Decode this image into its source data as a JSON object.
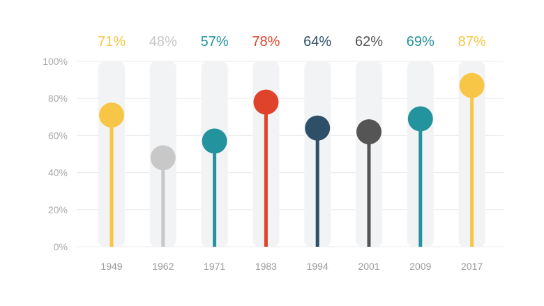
{
  "chart_data": {
    "type": "lollipop",
    "categories": [
      "1949",
      "1962",
      "1971",
      "1983",
      "1994",
      "2001",
      "2009",
      "2017"
    ],
    "values": [
      71,
      48,
      57,
      78,
      64,
      62,
      69,
      87
    ],
    "value_labels": [
      "71%",
      "48%",
      "57%",
      "78%",
      "64%",
      "62%",
      "69%",
      "87%"
    ],
    "colors": [
      "#f8c646",
      "#c8c8c8",
      "#23939d",
      "#e0432c",
      "#2d4f68",
      "#555555",
      "#23939d",
      "#f8c646"
    ],
    "y_ticks": [
      "0%",
      "20%",
      "40%",
      "60%",
      "80%",
      "100%"
    ],
    "ylim": [
      0,
      100
    ],
    "grid": true,
    "track_color": "#f2f3f5",
    "grid_color": "#ececec"
  }
}
